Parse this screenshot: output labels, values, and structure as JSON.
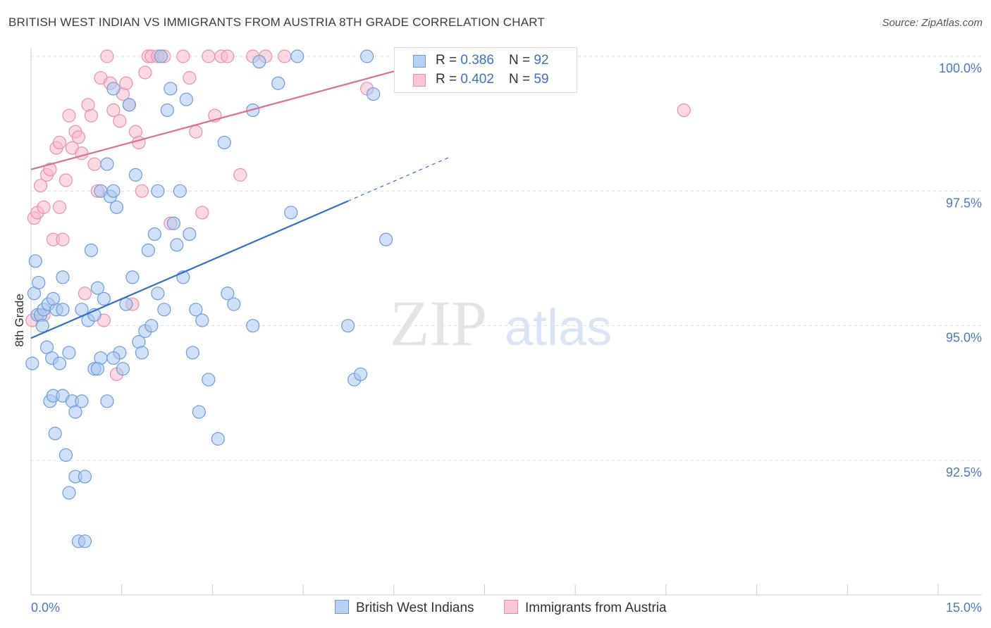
{
  "title": "BRITISH WEST INDIAN VS IMMIGRANTS FROM AUSTRIA 8TH GRADE CORRELATION CHART",
  "source": "Source: ZipAtlas.com",
  "watermark": {
    "zip": "ZIP",
    "atlas": "atlas"
  },
  "legend": {
    "series1": {
      "r_label": "R = ",
      "r_value": "0.386",
      "n_label": "N = ",
      "n_value": "92"
    },
    "series2": {
      "r_label": "R = ",
      "r_value": "0.402",
      "n_label": "N = ",
      "n_value": "59"
    }
  },
  "bottom_legend": {
    "series1": "British West Indians",
    "series2": "Immigrants from Austria"
  },
  "colors": {
    "blue_fill": "#a9c6ef",
    "blue_stroke": "#6f9bd8",
    "blue_line": "#2f6fcf",
    "pink_fill": "#f6b9cb",
    "pink_stroke": "#e890ab",
    "pink_line": "#e06b95",
    "grid": "#dddddd",
    "axis_text": "#4a78c2"
  },
  "chart_data": {
    "type": "scatter",
    "title": "BRITISH WEST INDIAN VS IMMIGRANTS FROM AUSTRIA 8TH GRADE CORRELATION CHART",
    "xlabel": "",
    "ylabel": "8th Grade",
    "xlim": [
      0,
      15
    ],
    "ylim": [
      90.0,
      100.5
    ],
    "x_tick_labels": [
      "0.0%",
      "15.0%"
    ],
    "y_ticks": [
      92.5,
      95.0,
      97.5,
      100.0
    ],
    "y_tick_labels": [
      "92.5%",
      "95.0%",
      "97.5%",
      "100.0%"
    ],
    "series": [
      {
        "name": "British West Indians",
        "R": 0.386,
        "N": 92,
        "trend": {
          "x0": 0.0,
          "y0": 94.77,
          "x1": 15.0,
          "y1": 102.4,
          "solid_until_x": 5.0
        },
        "points": [
          [
            0.02,
            94.3
          ],
          [
            0.05,
            95.6
          ],
          [
            0.07,
            96.2
          ],
          [
            0.1,
            95.2
          ],
          [
            0.12,
            95.8
          ],
          [
            0.15,
            95.2
          ],
          [
            0.18,
            95.0
          ],
          [
            0.2,
            95.3
          ],
          [
            0.25,
            94.6
          ],
          [
            0.27,
            95.4
          ],
          [
            0.3,
            93.6
          ],
          [
            0.33,
            94.4
          ],
          [
            0.35,
            93.7
          ],
          [
            0.38,
            93.0
          ],
          [
            0.4,
            95.3
          ],
          [
            0.45,
            94.3
          ],
          [
            0.5,
            93.7
          ],
          [
            0.5,
            95.9
          ],
          [
            0.55,
            92.6
          ],
          [
            0.6,
            94.5
          ],
          [
            0.6,
            91.9
          ],
          [
            0.65,
            93.6
          ],
          [
            0.7,
            93.4
          ],
          [
            0.7,
            92.2
          ],
          [
            0.75,
            91.0
          ],
          [
            0.8,
            93.6
          ],
          [
            0.8,
            95.3
          ],
          [
            0.85,
            91.0
          ],
          [
            0.85,
            92.2
          ],
          [
            0.9,
            95.1
          ],
          [
            0.95,
            96.4
          ],
          [
            1.0,
            95.2
          ],
          [
            1.0,
            94.2
          ],
          [
            1.05,
            95.7
          ],
          [
            1.1,
            94.4
          ],
          [
            1.1,
            97.5
          ],
          [
            1.15,
            95.5
          ],
          [
            1.2,
            98.0
          ],
          [
            1.2,
            93.6
          ],
          [
            1.25,
            97.4
          ],
          [
            1.3,
            97.5
          ],
          [
            1.3,
            99.4
          ],
          [
            1.35,
            97.2
          ],
          [
            1.4,
            94.5
          ],
          [
            1.45,
            94.2
          ],
          [
            1.5,
            95.4
          ],
          [
            1.55,
            99.1
          ],
          [
            1.6,
            95.9
          ],
          [
            1.65,
            97.8
          ],
          [
            1.7,
            94.7
          ],
          [
            1.75,
            94.5
          ],
          [
            1.8,
            94.9
          ],
          [
            1.85,
            96.4
          ],
          [
            1.9,
            95.0
          ],
          [
            1.95,
            96.7
          ],
          [
            2.0,
            95.6
          ],
          [
            2.0,
            97.5
          ],
          [
            2.05,
            100.0
          ],
          [
            2.1,
            95.3
          ],
          [
            2.15,
            99.0
          ],
          [
            2.2,
            99.4
          ],
          [
            2.25,
            96.9
          ],
          [
            2.3,
            96.5
          ],
          [
            2.35,
            97.5
          ],
          [
            2.4,
            95.9
          ],
          [
            2.45,
            99.2
          ],
          [
            2.5,
            96.7
          ],
          [
            2.55,
            94.5
          ],
          [
            2.6,
            95.3
          ],
          [
            2.65,
            93.4
          ],
          [
            2.7,
            95.1
          ],
          [
            2.8,
            94.0
          ],
          [
            2.95,
            92.9
          ],
          [
            3.05,
            98.4
          ],
          [
            3.1,
            95.6
          ],
          [
            3.2,
            95.4
          ],
          [
            3.5,
            99.0
          ],
          [
            3.5,
            95.0
          ],
          [
            3.6,
            99.9
          ],
          [
            3.9,
            99.5
          ],
          [
            4.1,
            97.1
          ],
          [
            4.2,
            100.0
          ],
          [
            5.0,
            95.0
          ],
          [
            5.1,
            94.0
          ],
          [
            5.2,
            94.1
          ],
          [
            5.3,
            100.0
          ],
          [
            5.4,
            99.3
          ],
          [
            5.6,
            96.6
          ],
          [
            1.05,
            94.2
          ],
          [
            0.5,
            95.3
          ],
          [
            1.3,
            94.4
          ],
          [
            0.35,
            95.5
          ]
        ]
      },
      {
        "name": "Immigrants from Austria",
        "R": 0.402,
        "N": 59,
        "trend": {
          "x0": 0.0,
          "y0": 97.9,
          "x1": 6.6,
          "y1": 100.0
        },
        "points": [
          [
            0.02,
            95.1
          ],
          [
            0.05,
            97.0
          ],
          [
            0.1,
            97.1
          ],
          [
            0.15,
            97.6
          ],
          [
            0.2,
            97.2
          ],
          [
            0.25,
            97.8
          ],
          [
            0.3,
            97.9
          ],
          [
            0.35,
            96.6
          ],
          [
            0.4,
            98.3
          ],
          [
            0.45,
            98.4
          ],
          [
            0.5,
            96.6
          ],
          [
            0.55,
            97.7
          ],
          [
            0.6,
            98.9
          ],
          [
            0.65,
            98.3
          ],
          [
            0.7,
            98.6
          ],
          [
            0.75,
            98.5
          ],
          [
            0.8,
            98.2
          ],
          [
            0.85,
            95.6
          ],
          [
            0.9,
            99.1
          ],
          [
            0.95,
            98.9
          ],
          [
            1.0,
            98.0
          ],
          [
            1.05,
            97.5
          ],
          [
            1.1,
            99.6
          ],
          [
            1.15,
            95.1
          ],
          [
            1.2,
            100.0
          ],
          [
            1.25,
            99.5
          ],
          [
            1.3,
            99.0
          ],
          [
            1.35,
            94.1
          ],
          [
            1.4,
            98.8
          ],
          [
            1.45,
            99.3
          ],
          [
            1.5,
            99.5
          ],
          [
            1.55,
            99.1
          ],
          [
            1.6,
            95.4
          ],
          [
            1.65,
            98.6
          ],
          [
            1.7,
            98.4
          ],
          [
            1.75,
            97.5
          ],
          [
            1.8,
            99.7
          ],
          [
            1.85,
            100.0
          ],
          [
            1.9,
            100.0
          ],
          [
            2.0,
            100.0
          ],
          [
            2.1,
            100.0
          ],
          [
            2.2,
            96.9
          ],
          [
            2.4,
            100.0
          ],
          [
            2.5,
            99.6
          ],
          [
            2.6,
            98.6
          ],
          [
            2.7,
            97.1
          ],
          [
            2.8,
            100.0
          ],
          [
            2.9,
            98.9
          ],
          [
            3.0,
            100.0
          ],
          [
            3.1,
            100.0
          ],
          [
            3.3,
            97.8
          ],
          [
            3.5,
            100.0
          ],
          [
            3.7,
            100.0
          ],
          [
            4.0,
            100.0
          ],
          [
            5.3,
            99.4
          ],
          [
            6.2,
            100.0
          ],
          [
            10.3,
            99.0
          ],
          [
            0.2,
            95.2
          ],
          [
            0.45,
            97.2
          ]
        ]
      }
    ]
  }
}
